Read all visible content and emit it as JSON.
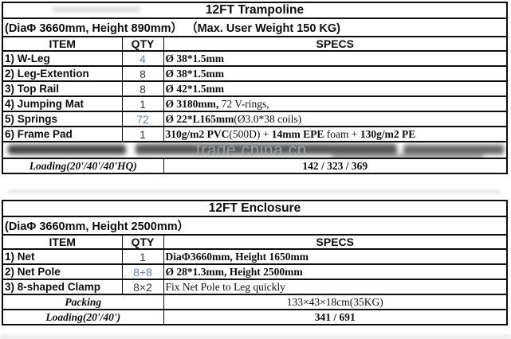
{
  "colors": {
    "border": "#0d0d0d",
    "qty_highlight": "#5b7fbe",
    "qty_normal": "#3a3a3a",
    "watermark": "#9a9ea0"
  },
  "watermark": {
    "text": "trade.china.cn"
  },
  "tables": [
    {
      "id": "trampoline",
      "title": "12FT Trampoline",
      "subtitle": "(DiaΦ 3660mm, Height 890mm） （Max. User Weight 150 KG)",
      "columns": [
        "ITEM",
        "QTY",
        "SPECS"
      ],
      "rows": [
        {
          "item": "1) W-Leg",
          "qty": "4",
          "qty_highlight": true,
          "specs": [
            {
              "t": "Ø 38*1.5mm",
              "b": true
            }
          ]
        },
        {
          "item": "2) Leg-Extention",
          "qty": "8",
          "qty_highlight": false,
          "specs": [
            {
              "t": "Ø 38*1.5mm",
              "b": true
            }
          ]
        },
        {
          "item": "3) Top Rail",
          "qty": "8",
          "qty_highlight": false,
          "specs": [
            {
              "t": "Ø 42*1.5mm",
              "b": true
            }
          ]
        },
        {
          "item": "4) Jumping Mat",
          "qty": "1",
          "qty_highlight": false,
          "specs": [
            {
              "t": "Ø 3180mm,",
              "b": true
            },
            {
              "t": " 72 V-rings,",
              "b": false
            }
          ]
        },
        {
          "item": "5) Springs",
          "qty": "72",
          "qty_highlight": true,
          "specs": [
            {
              "t": "Ø 22*L165mm",
              "b": true
            },
            {
              "t": "(Ø3.0*38 coils)",
              "b": false
            }
          ]
        },
        {
          "item": "6) Frame Pad",
          "qty": "1",
          "qty_highlight": false,
          "specs": [
            {
              "t": "310g/m2 PVC",
              "b": true
            },
            {
              "t": "(500D) + ",
              "b": false
            },
            {
              "t": "14mm EPE",
              "b": true
            },
            {
              "t": " foam + ",
              "b": false
            },
            {
              "t": "130g/m2 PE",
              "b": true
            }
          ]
        }
      ],
      "footer_rows": [
        {
          "label": "Loading(20'/40'/40'HQ)",
          "value": "142 / 323 / 369",
          "value_bold": true
        }
      ]
    },
    {
      "id": "enclosure",
      "title": "12FT Enclosure",
      "subtitle": "(DiaΦ 3660mm, Height 2500mm）",
      "columns": [
        "ITEM",
        "QTY",
        "SPECS"
      ],
      "rows": [
        {
          "item": "1) Net",
          "qty": "1",
          "qty_highlight": false,
          "specs": [
            {
              "t": "DiaΦ3660mm, Height 1650mm",
              "b": true
            }
          ]
        },
        {
          "item": "2) Net Pole",
          "qty": "8+8",
          "qty_highlight": true,
          "specs": [
            {
              "t": "Ø 28*1.3mm, Height 2500mm",
              "b": true
            }
          ]
        },
        {
          "item": "3) 8-shaped Clamp",
          "qty": "8×2",
          "qty_highlight": false,
          "specs": [
            {
              "t": "Fix Net Pole to Leg quickly",
              "b": false
            }
          ]
        }
      ],
      "footer_rows": [
        {
          "label": "Packing",
          "value": "133×43×18cm(35KG)",
          "value_bold": false
        },
        {
          "label": "Loading(20'/40')",
          "value": "341 / 691",
          "value_bold": true
        }
      ]
    }
  ]
}
